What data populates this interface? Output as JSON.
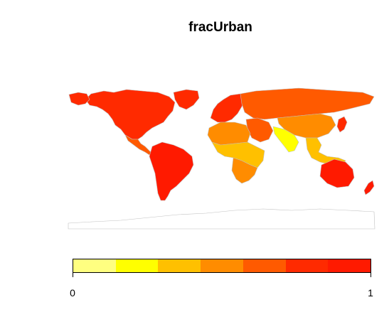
{
  "title": "fracUrban",
  "legend": {
    "min_label": "0",
    "max_label": "1",
    "colors": [
      "#ffff80",
      "#ffff00",
      "#ffc000",
      "#ff8c00",
      "#ff5a00",
      "#ff2a00",
      "#ff1a00"
    ]
  },
  "map": {
    "border_color": "#c0c0c0",
    "regions": [
      {
        "region": "north-america",
        "color": "#ff2a00"
      },
      {
        "region": "alaska",
        "color": "#ff2a00"
      },
      {
        "region": "greenland",
        "color": "#ff2a00"
      },
      {
        "region": "central-america",
        "color": "#ff5a00"
      },
      {
        "region": "south-america",
        "color": "#ff1a00"
      },
      {
        "region": "western-europe",
        "color": "#ff2a00"
      },
      {
        "region": "russia",
        "color": "#ff5a00"
      },
      {
        "region": "north-africa",
        "color": "#ff8c00"
      },
      {
        "region": "middle-east",
        "color": "#ff5a00"
      },
      {
        "region": "sub-saharan-africa",
        "color": "#ffc000"
      },
      {
        "region": "southern-africa",
        "color": "#ff8c00"
      },
      {
        "region": "south-asia",
        "color": "#ffff00"
      },
      {
        "region": "china",
        "color": "#ff8c00"
      },
      {
        "region": "southeast-asia",
        "color": "#ffc000"
      },
      {
        "region": "japan",
        "color": "#ff2a00"
      },
      {
        "region": "australia",
        "color": "#ff1a00"
      },
      {
        "region": "new-zealand",
        "color": "#ff1a00"
      },
      {
        "region": "antarctica",
        "color": "#ffffff"
      }
    ]
  }
}
